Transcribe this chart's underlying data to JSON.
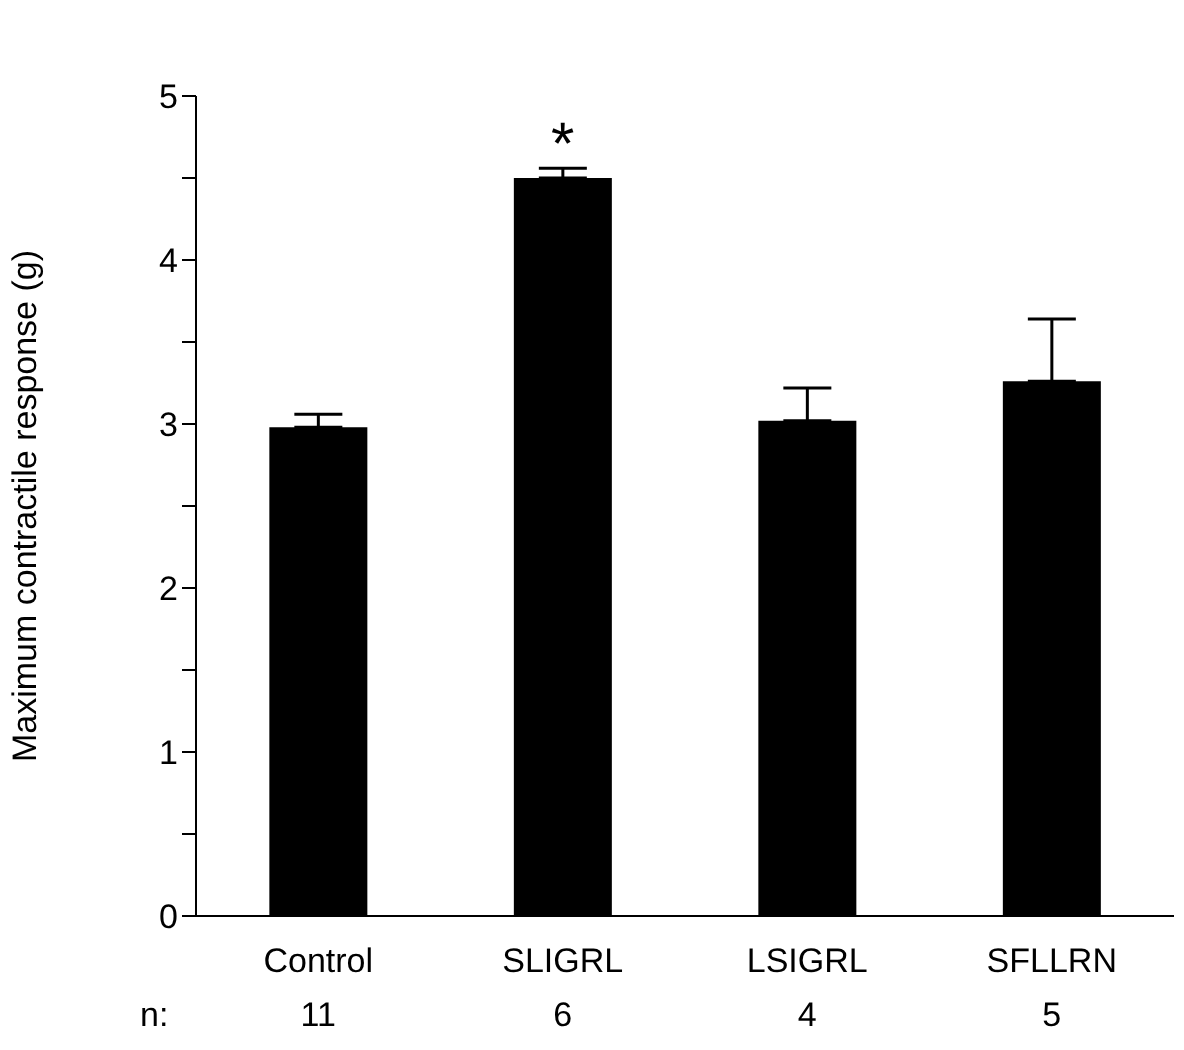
{
  "chart_data": {
    "type": "bar",
    "ylabel": "Maximum contractile response (g)",
    "categories": [
      "Control",
      "SLIGRL",
      "LSIGRL",
      "SFLLRN"
    ],
    "values": [
      2.98,
      4.5,
      3.02,
      3.26
    ],
    "errors": [
      [
        2.98,
        3.06
      ],
      [
        4.5,
        4.56
      ],
      [
        3.02,
        3.22
      ],
      [
        3.26,
        3.64
      ]
    ],
    "color": "#000000",
    "ylim": [
      0,
      5
    ],
    "yticks": [
      0,
      {
        "value": 0.5,
        "label": null
      },
      1,
      {
        "value": 1.5,
        "label": null
      },
      2,
      {
        "value": 2.5,
        "label": null
      },
      3,
      {
        "value": 3.5,
        "label": null
      },
      4,
      {
        "value": 4.5,
        "label": null
      },
      5
    ],
    "grid": false,
    "annotations": [
      {
        "text": "*",
        "x": "SLIGRL",
        "y": 4.56
      },
      "n:",
      "11",
      "6",
      "4",
      "5"
    ]
  }
}
